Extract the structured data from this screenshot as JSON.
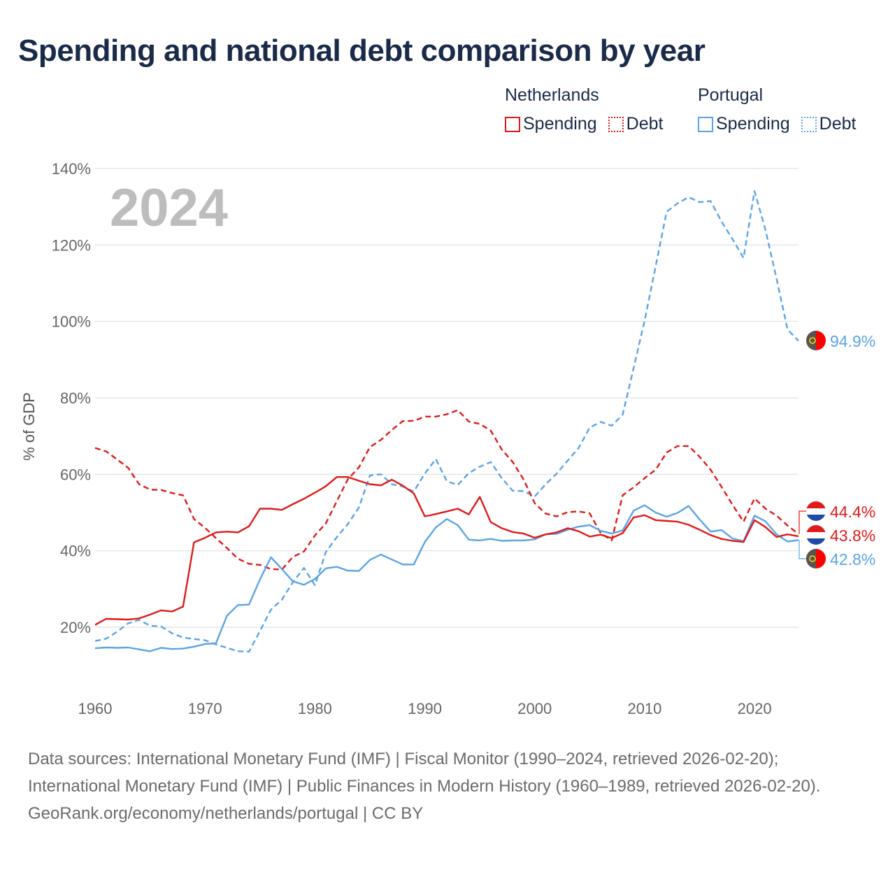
{
  "title": "Spending and national debt comparison by year",
  "legend": {
    "groups": [
      {
        "name": "Netherlands",
        "color": "#e01a1a",
        "items": [
          "Spending",
          "Debt"
        ]
      },
      {
        "name": "Portugal",
        "color": "#5ba4e5",
        "items": [
          "Spending",
          "Debt"
        ]
      }
    ]
  },
  "footer": {
    "sources": "Data sources: International Monetary Fund (IMF) | Fiscal Monitor (1990–2024, retrieved 2026-02-20); International Monetary Fund (IMF) | Public Finances in Modern History (1960–1989, retrieved 2026-02-20).",
    "credit": "GeoRank.org/economy/netherlands/portugal | CC BY"
  },
  "chart_data": {
    "type": "line",
    "title": "Spending and national debt comparison by year",
    "year_label": "2024",
    "ylabel": "% of GDP",
    "xlabel": "",
    "xlim": [
      1960,
      2024
    ],
    "ylim": [
      0,
      140
    ],
    "x_ticks": [
      1960,
      1970,
      1980,
      1990,
      2000,
      2010,
      2020
    ],
    "y_ticks": [
      20,
      40,
      60,
      80,
      100,
      120,
      140
    ],
    "y_tick_labels": [
      "20%",
      "40%",
      "60%",
      "80%",
      "100%",
      "120%",
      "140%"
    ],
    "grid": true,
    "x": [
      1960,
      1961,
      1962,
      1963,
      1964,
      1965,
      1966,
      1967,
      1968,
      1969,
      1970,
      1971,
      1972,
      1973,
      1974,
      1975,
      1976,
      1977,
      1978,
      1979,
      1980,
      1981,
      1982,
      1983,
      1984,
      1985,
      1986,
      1987,
      1988,
      1989,
      1990,
      1991,
      1992,
      1993,
      1994,
      1995,
      1996,
      1997,
      1998,
      1999,
      2000,
      2001,
      2002,
      2003,
      2004,
      2005,
      2006,
      2007,
      2008,
      2009,
      2010,
      2011,
      2012,
      2013,
      2014,
      2015,
      2016,
      2017,
      2018,
      2019,
      2020,
      2021,
      2022,
      2023,
      2024
    ],
    "series": [
      {
        "name": "Netherlands Spending",
        "country": "Netherlands",
        "metric": "Spending",
        "color": "#e01a1a",
        "dash": false,
        "end_label": "43.8%",
        "values": [
          20.6,
          22.2,
          22.1,
          22.0,
          22.3,
          23.3,
          24.4,
          24.1,
          25.4,
          42.2,
          43.4,
          44.8,
          45.0,
          44.8,
          46.4,
          51.0,
          51.0,
          50.7,
          52.2,
          53.6,
          55.2,
          56.9,
          59.3,
          59.3,
          58.3,
          57.4,
          57.1,
          58.6,
          57.0,
          55.0,
          49.0,
          49.6,
          50.3,
          51.0,
          49.5,
          54.1,
          47.5,
          45.9,
          44.9,
          44.5,
          43.4,
          44.3,
          44.8,
          45.9,
          45.1,
          43.7,
          44.2,
          43.3,
          44.6,
          48.7,
          49.3,
          48.0,
          47.8,
          47.6,
          46.8,
          45.5,
          44.1,
          43.1,
          42.6,
          42.3,
          48.0,
          46.2,
          43.6,
          44.3,
          43.8
        ]
      },
      {
        "name": "Netherlands Debt",
        "country": "Netherlands",
        "metric": "Debt",
        "color": "#e01a1a",
        "dash": true,
        "end_label": "44.4%",
        "values": [
          66.9,
          66.0,
          63.9,
          61.7,
          57.4,
          56.0,
          55.9,
          55.1,
          54.5,
          48.3,
          46.0,
          43.3,
          40.7,
          37.9,
          36.6,
          36.3,
          35.2,
          35.1,
          38.4,
          39.8,
          44.0,
          47.2,
          53.0,
          58.7,
          61.8,
          67.1,
          69.0,
          71.6,
          73.9,
          74.0,
          75.1,
          75.1,
          75.7,
          76.8,
          73.8,
          73.2,
          71.4,
          66.5,
          63.2,
          58.6,
          52.4,
          49.7,
          49.0,
          50.1,
          50.3,
          49.8,
          44.6,
          42.7,
          54.5,
          56.6,
          59.0,
          61.2,
          65.7,
          67.4,
          67.4,
          64.6,
          61.2,
          56.7,
          52.0,
          47.6,
          53.7,
          51.0,
          49.2,
          46.6,
          44.4
        ]
      },
      {
        "name": "Portugal Spending",
        "country": "Portugal",
        "metric": "Spending",
        "color": "#5ba4e5",
        "dash": false,
        "end_label": "42.8%",
        "values": [
          14.5,
          14.7,
          14.6,
          14.7,
          14.2,
          13.7,
          14.6,
          14.3,
          14.4,
          14.9,
          15.6,
          15.8,
          23.0,
          25.8,
          25.9,
          32.5,
          38.3,
          35.2,
          32.0,
          31.1,
          32.6,
          35.4,
          35.8,
          34.8,
          34.7,
          37.6,
          39.0,
          37.7,
          36.4,
          36.4,
          42.3,
          46.1,
          48.3,
          46.7,
          42.9,
          42.7,
          43.1,
          42.6,
          42.7,
          42.7,
          43.0,
          44.3,
          44.4,
          45.5,
          46.3,
          46.7,
          45.2,
          44.5,
          45.3,
          50.5,
          51.9,
          50.0,
          48.9,
          49.9,
          51.7,
          48.2,
          45.0,
          45.4,
          43.2,
          42.5,
          49.2,
          47.7,
          44.3,
          42.4,
          42.8
        ]
      },
      {
        "name": "Portugal Debt",
        "country": "Portugal",
        "metric": "Debt",
        "color": "#5ba4e5",
        "dash": true,
        "end_label": "94.9%",
        "values": [
          16.4,
          17.0,
          18.8,
          21.0,
          21.9,
          20.4,
          20.2,
          18.4,
          17.3,
          16.9,
          16.6,
          15.5,
          14.6,
          13.7,
          13.6,
          19.0,
          24.6,
          27.2,
          31.8,
          35.5,
          31.0,
          39.7,
          43.6,
          47.0,
          51.3,
          59.7,
          60.0,
          57.4,
          56.8,
          55.5,
          60.2,
          64.0,
          58.2,
          57.2,
          60.3,
          62.0,
          63.2,
          59.0,
          55.7,
          55.6,
          54.2,
          57.4,
          60.2,
          63.6,
          66.9,
          72.2,
          73.7,
          72.7,
          75.6,
          87.8,
          100.2,
          114.4,
          128.7,
          130.9,
          132.5,
          131.2,
          131.5,
          126.1,
          121.5,
          116.6,
          134.1,
          123.9,
          111.2,
          97.9,
          94.9
        ]
      }
    ]
  }
}
